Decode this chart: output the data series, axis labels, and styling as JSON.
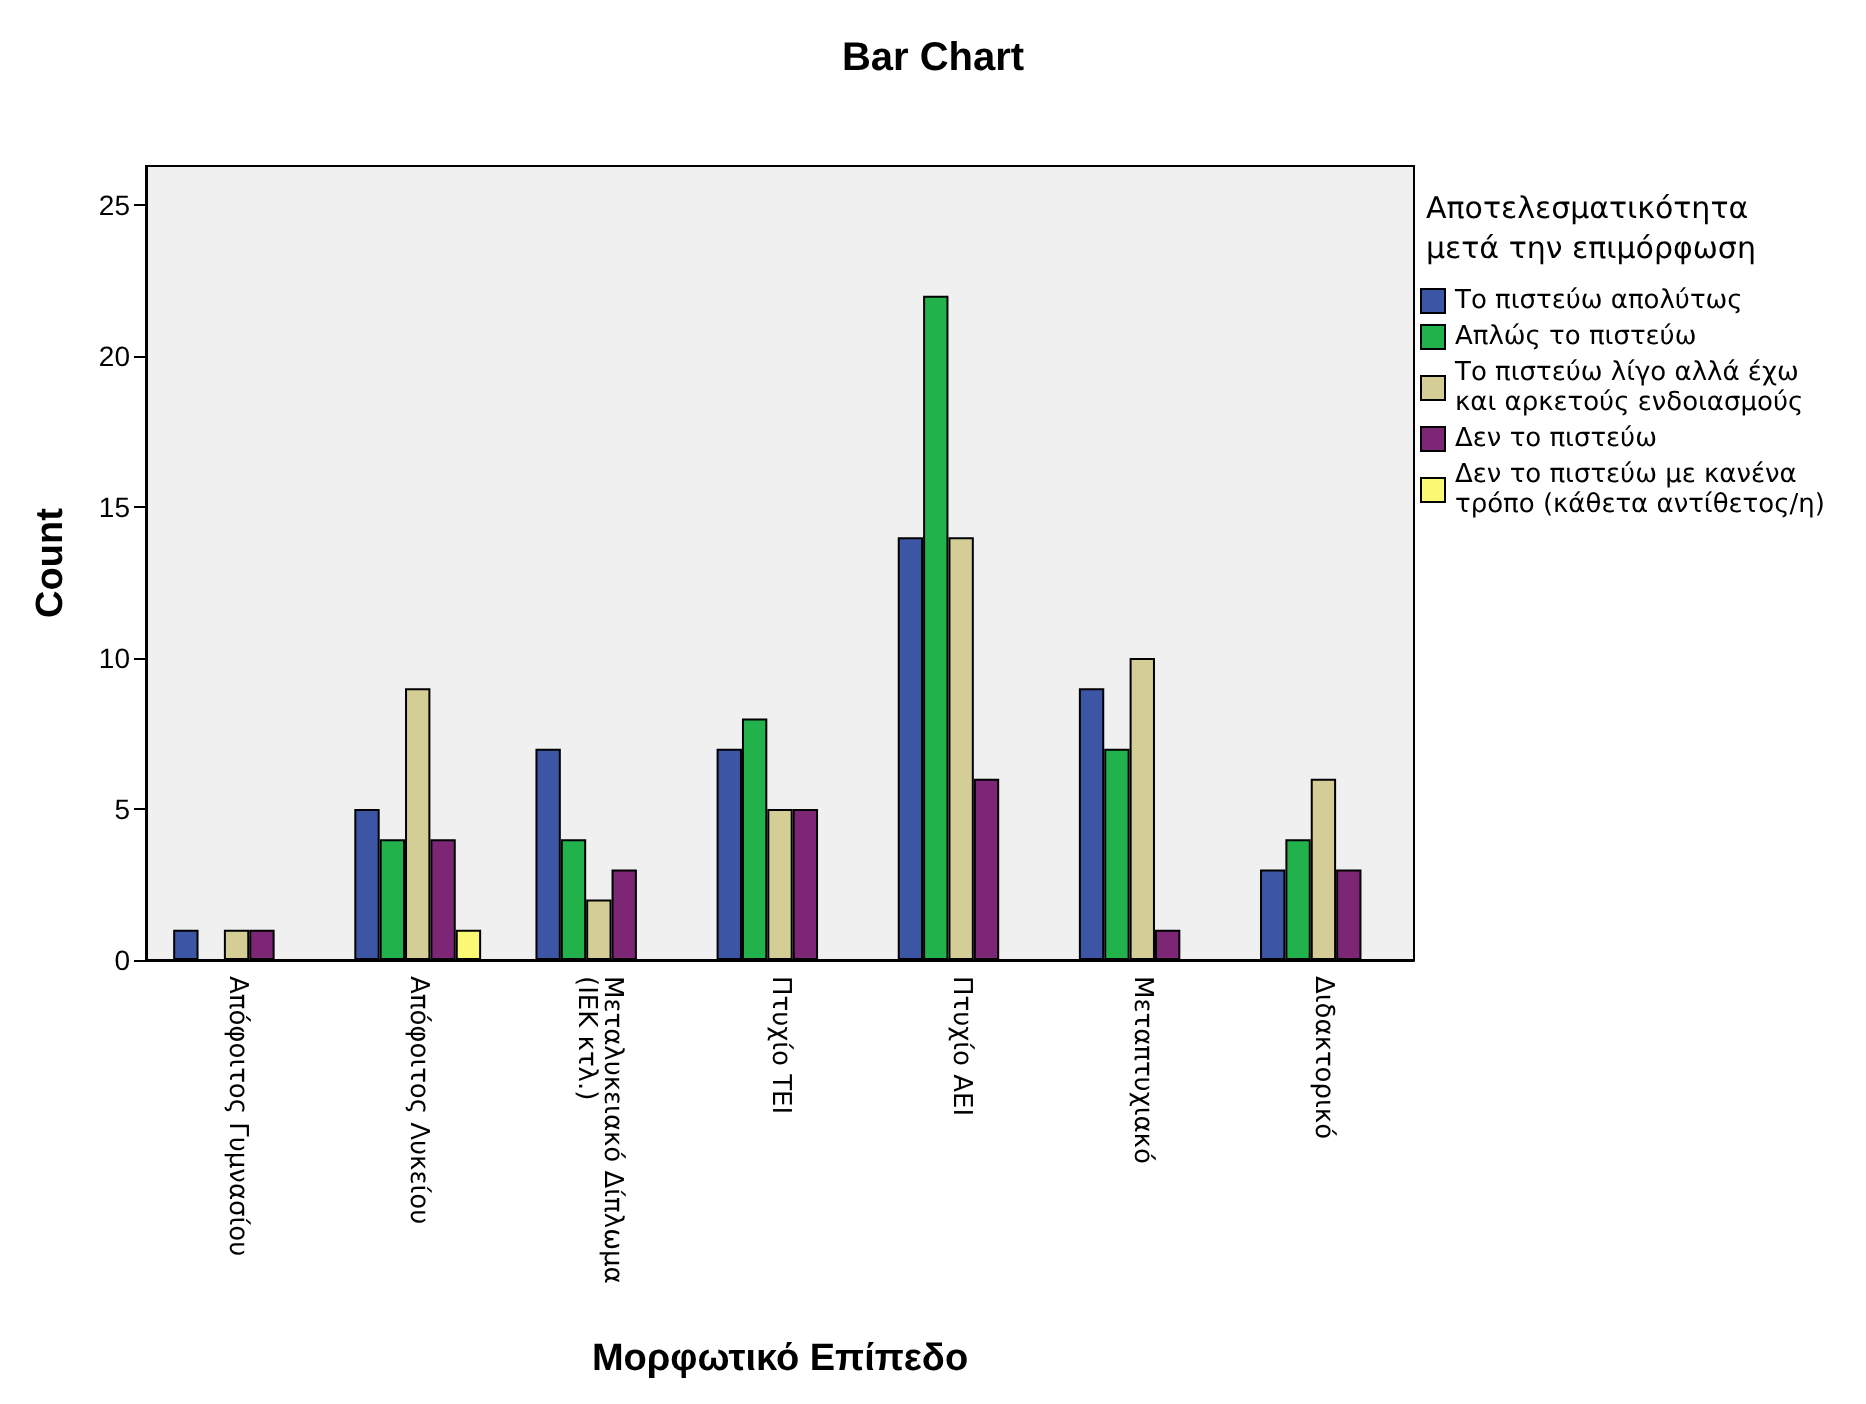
{
  "chart_data": {
    "type": "bar",
    "title": "Bar Chart",
    "xlabel": "Μορφωτικό Επίπεδο",
    "ylabel": "Count",
    "legend_title": "Αποτελεσματικότητα\nμετά την επιμόρφωση",
    "categories": [
      "Απόφοιτος Γυμνασίου",
      "Απόφοιτος Λυκείου",
      "Μεταλυκειακό Δίπλωμα\n(ΙΕΚ κτλ.)",
      "Πτυχίο ΤΕΙ",
      "Πτυχίο ΑΕΙ",
      "Μεταπτυχιακό",
      "Διδακτορικό"
    ],
    "series": [
      {
        "name": "Το πιστεύω απολύτως",
        "color": "#3d55a5",
        "values": [
          1,
          5,
          7,
          7,
          14,
          9,
          3
        ]
      },
      {
        "name": "Απλώς το πιστεύω",
        "color": "#22b24c",
        "values": [
          0,
          4,
          4,
          8,
          22,
          7,
          4
        ]
      },
      {
        "name": "Το πιστεύω λίγο αλλά έχω\nκαι αρκετούς ενδοιασμούς",
        "color": "#d4cd96",
        "values": [
          1,
          9,
          2,
          5,
          14,
          10,
          6
        ]
      },
      {
        "name": "Δεν το πιστεύω",
        "color": "#7c2675",
        "values": [
          1,
          4,
          3,
          5,
          6,
          1,
          3
        ]
      },
      {
        "name": "Δεν το πιστεύω με κανένα\nτρόπο (κάθετα αντίθετος/η)",
        "color": "#fbf874",
        "values": [
          0,
          1,
          0,
          0,
          0,
          0,
          0
        ]
      }
    ],
    "ylim": [
      0,
      26.3
    ],
    "yticks": [
      0,
      5,
      10,
      15,
      20,
      25
    ],
    "grid": false,
    "legend": "right"
  }
}
